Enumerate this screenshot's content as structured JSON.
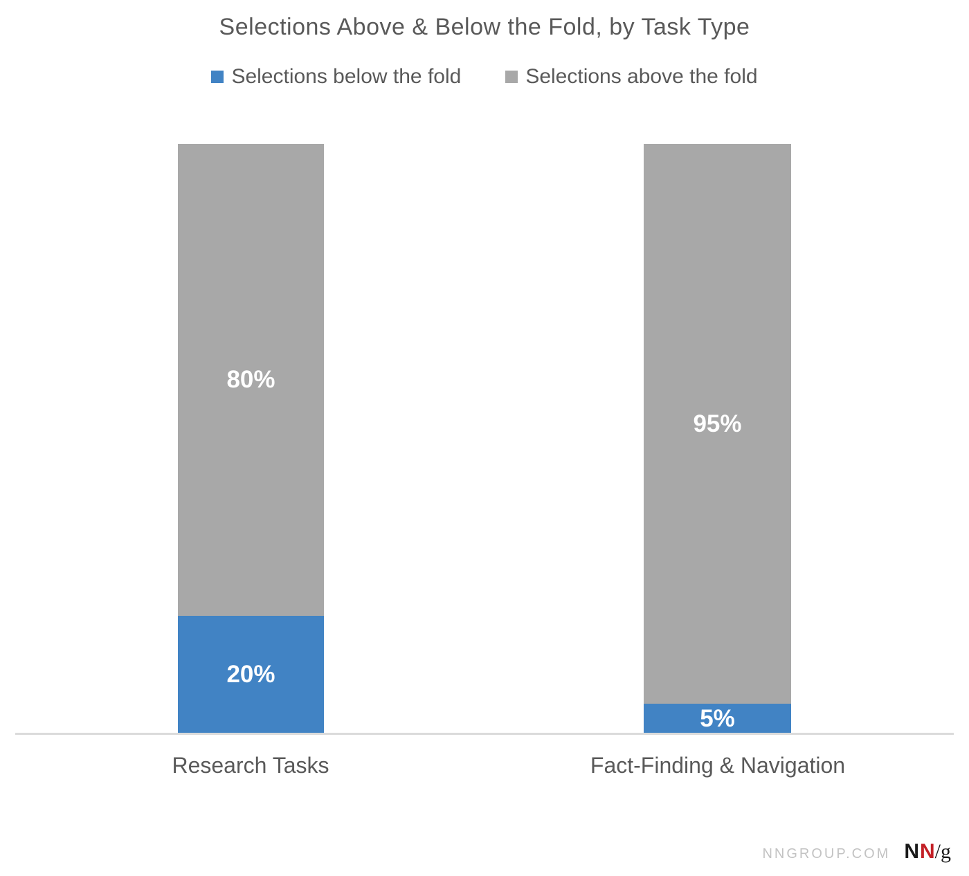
{
  "title": "Selections Above & Below the Fold, by Task Type",
  "legend": {
    "below": {
      "label": "Selections below the fold"
    },
    "above": {
      "label": "Selections above the fold"
    }
  },
  "chart_data": {
    "type": "bar",
    "subtype": "stacked-percent",
    "orientation": "vertical",
    "categories": [
      "Research Tasks",
      "Fact-Finding & Navigation"
    ],
    "series": [
      {
        "name": "Selections below the fold",
        "color": "#4183c4",
        "values": [
          20,
          5
        ]
      },
      {
        "name": "Selections above the fold",
        "color": "#a8a8a8",
        "values": [
          80,
          95
        ]
      }
    ],
    "value_labels": {
      "below": [
        "20%",
        "5%"
      ],
      "above": [
        "80%",
        "95%"
      ]
    },
    "title": "Selections Above & Below the Fold, by Task Type",
    "xlabel": "",
    "ylabel": "",
    "ylim": [
      0,
      100
    ],
    "grid": false,
    "legend_position": "top",
    "value_label_color": "#ffffff"
  },
  "colors": {
    "below_fold_blue": "#4183c4",
    "above_fold_gray": "#a8a8a8",
    "text_gray": "#595959",
    "axis_line": "#dbdbdb",
    "footer_gray": "#c3c3c3",
    "logo_red": "#c32026",
    "logo_black": "#1a1a1a"
  },
  "footer": {
    "site": "NNGROUP.COM",
    "logo": {
      "n1": "N",
      "n2": "N",
      "slash_g": "/g"
    }
  }
}
